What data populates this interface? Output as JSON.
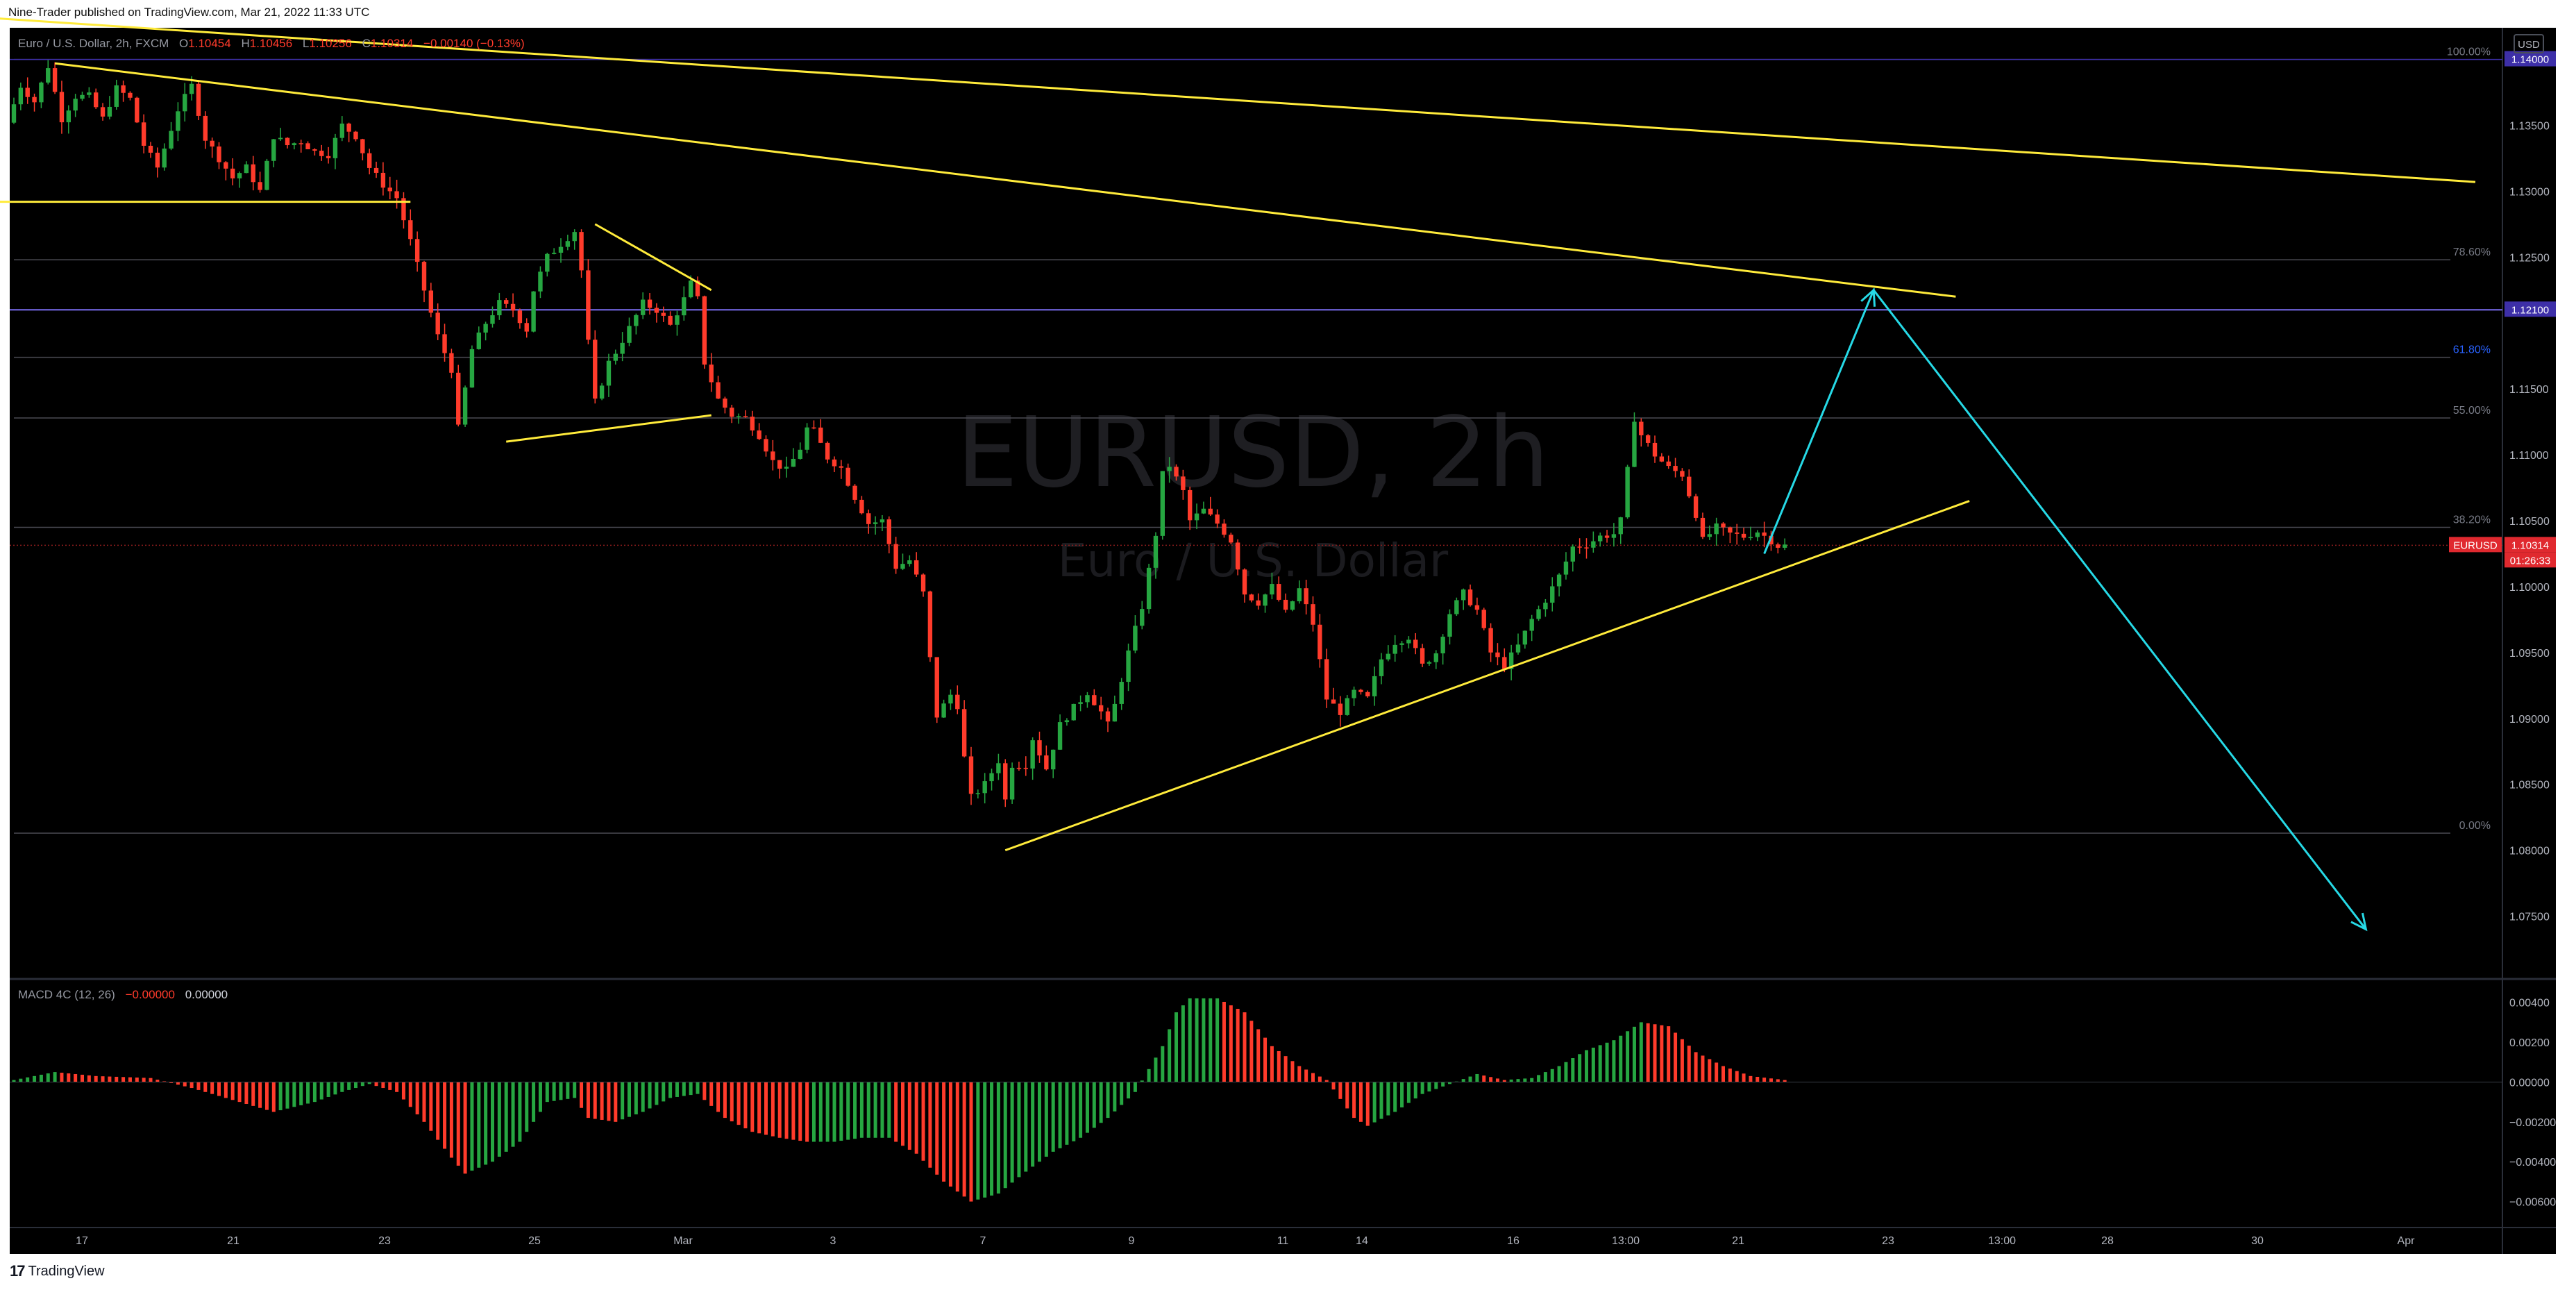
{
  "publisher": "Nine-Trader published on TradingView.com, Mar 21, 2022 11:33 UTC",
  "brand": {
    "logo": "17",
    "name": "TradingView"
  },
  "currency": "USD",
  "watermark": {
    "symbol": "EURUSD, 2h",
    "description": "Euro / U.S. Dollar"
  },
  "colors": {
    "background": "#000000",
    "up": "#26a641",
    "down": "#ff3b2b",
    "trendline": "#ffeb3b",
    "projection": "#26d9e6",
    "fib_line": "#4a4a52",
    "label_price": "#e0292f",
    "label_level": "#3d2fa8"
  },
  "header": {
    "title": "Euro / U.S. Dollar, 2h, FXCM",
    "o_label": "O",
    "o": "1.10454",
    "h_label": "H",
    "h": "1.10456",
    "l_label": "L",
    "l": "1.10256",
    "c_label": "C",
    "c": "1.10314",
    "change": "−0.00140 (−0.13%)"
  },
  "macd": {
    "title": "MACD 4C (12, 26)",
    "val1": "−0.00000",
    "val2": "0.00000"
  },
  "price_axis": {
    "ticks": [
      "1.13500",
      "1.13000",
      "1.12500",
      "1.11500",
      "1.11000",
      "1.10500",
      "1.10000",
      "1.09500",
      "1.09000",
      "1.08500",
      "1.08000",
      "1.07500"
    ],
    "tick_values": [
      1.135,
      1.13,
      1.125,
      1.115,
      1.11,
      1.105,
      1.1,
      1.095,
      1.09,
      1.085,
      1.08,
      1.075
    ]
  },
  "macd_axis": {
    "ticks": [
      "0.00400",
      "0.00200",
      "0.00000",
      "−0.00200",
      "−0.00400",
      "−0.00600"
    ],
    "tick_values": [
      0.004,
      0.002,
      0.0,
      -0.002,
      -0.004,
      -0.006
    ]
  },
  "fib_levels": [
    {
      "label": "100.00%",
      "value": 1.14
    },
    {
      "label": "78.60%",
      "value": 1.1248
    },
    {
      "label": "61.80%",
      "value": 1.1174
    },
    {
      "label": "55.00%",
      "value": 1.1128
    },
    {
      "label": "38.20%",
      "value": 1.1045
    },
    {
      "label": "0.00%",
      "value": 1.0813
    }
  ],
  "price_labels": [
    {
      "text": "1.14000",
      "value": 1.14,
      "kind": "level"
    },
    {
      "text": "1.12100",
      "value": 1.121,
      "kind": "level"
    },
    {
      "text": "EURUSD",
      "value": 1.10314,
      "kind": "symbol"
    },
    {
      "text": "1.10314",
      "value": 1.10314,
      "kind": "price"
    },
    {
      "text": "01:26:33",
      "value": 1.10314,
      "kind": "timer"
    }
  ],
  "time_axis": [
    "17",
    "21",
    "23",
    "25",
    "Mar",
    "3",
    "7",
    "9",
    "11",
    "14",
    "16",
    "13:00",
    "21",
    "23",
    "13:00",
    "28",
    "30",
    "Apr"
  ],
  "chart_data": {
    "type": "candlestick",
    "symbol": "EURUSD",
    "interval": "2h",
    "ylim": [
      1.0705,
      1.1424
    ],
    "price_path": [
      [
        0,
        1.1352
      ],
      [
        2,
        1.138
      ],
      [
        4,
        1.1368
      ],
      [
        6,
        1.1395
      ],
      [
        8,
        1.1355
      ],
      [
        10,
        1.1372
      ],
      [
        12,
        1.1372
      ],
      [
        14,
        1.1355
      ],
      [
        16,
        1.1378
      ],
      [
        18,
        1.137
      ],
      [
        20,
        1.1335
      ],
      [
        22,
        1.1318
      ],
      [
        25,
        1.1362
      ],
      [
        27,
        1.138
      ],
      [
        29,
        1.134
      ],
      [
        31,
        1.1325
      ],
      [
        33,
        1.131
      ],
      [
        35,
        1.1318
      ],
      [
        37,
        1.13
      ],
      [
        39,
        1.1342
      ],
      [
        41,
        1.1335
      ],
      [
        43,
        1.1338
      ],
      [
        45,
        1.133
      ],
      [
        47,
        1.1328
      ],
      [
        49,
        1.135
      ],
      [
        51,
        1.1342
      ],
      [
        53,
        1.1318
      ],
      [
        55,
        1.1305
      ],
      [
        57,
        1.1295
      ],
      [
        59,
        1.1262
      ],
      [
        61,
        1.1225
      ],
      [
        63,
        1.119
      ],
      [
        65,
        1.1165
      ],
      [
        66,
        1.112
      ],
      [
        67,
        1.115
      ],
      [
        68,
        1.118
      ],
      [
        70,
        1.12
      ],
      [
        72,
        1.1215
      ],
      [
        74,
        1.121
      ],
      [
        76,
        1.1195
      ],
      [
        77,
        1.1225
      ],
      [
        79,
        1.125
      ],
      [
        81,
        1.126
      ],
      [
        83,
        1.127
      ],
      [
        84,
        1.124
      ],
      [
        85,
        1.1185
      ],
      [
        86,
        1.114
      ],
      [
        87,
        1.1155
      ],
      [
        88,
        1.117
      ],
      [
        89,
        1.1178
      ],
      [
        91,
        1.1196
      ],
      [
        93,
        1.1215
      ],
      [
        95,
        1.121
      ],
      [
        97,
        1.1198
      ],
      [
        99,
        1.1218
      ],
      [
        100,
        1.123
      ],
      [
        101,
        1.1218
      ],
      [
        102,
        1.117
      ],
      [
        104,
        1.1142
      ],
      [
        106,
        1.113
      ],
      [
        108,
        1.1128
      ],
      [
        110,
        1.1115
      ],
      [
        112,
        1.1095
      ],
      [
        114,
        1.1088
      ],
      [
        116,
        1.1105
      ],
      [
        117,
        1.112
      ],
      [
        118,
        1.1118
      ],
      [
        120,
        1.1098
      ],
      [
        122,
        1.109
      ],
      [
        124,
        1.1068
      ],
      [
        126,
        1.1048
      ],
      [
        128,
        1.105
      ],
      [
        130,
        1.1015
      ],
      [
        132,
        1.102
      ],
      [
        134,
        1.0995
      ],
      [
        135,
        1.0945
      ],
      [
        136,
        1.0902
      ],
      [
        138,
        1.0918
      ],
      [
        139,
        1.091
      ],
      [
        140,
        1.087
      ],
      [
        141,
        1.084
      ],
      [
        143,
        1.085
      ],
      [
        145,
        1.0868
      ],
      [
        146,
        1.0838
      ],
      [
        147,
        1.0865
      ],
      [
        149,
        1.0865
      ],
      [
        150,
        1.0885
      ],
      [
        152,
        1.0862
      ],
      [
        154,
        1.0895
      ],
      [
        156,
        1.0908
      ],
      [
        158,
        1.092
      ],
      [
        160,
        1.0905
      ],
      [
        161,
        1.0895
      ],
      [
        162,
        1.091
      ],
      [
        164,
        1.095
      ],
      [
        166,
        1.0985
      ],
      [
        168,
        1.104
      ],
      [
        169,
        1.1085
      ],
      [
        170,
        1.1092
      ],
      [
        172,
        1.1072
      ],
      [
        173,
        1.105
      ],
      [
        175,
        1.1058
      ],
      [
        177,
        1.1048
      ],
      [
        179,
        1.1035
      ],
      [
        181,
        1.0995
      ],
      [
        183,
        1.0988
      ],
      [
        185,
        1.1
      ],
      [
        187,
        1.098
      ],
      [
        189,
        1.0998
      ],
      [
        191,
        1.0972
      ],
      [
        193,
        1.0915
      ],
      [
        195,
        1.0905
      ],
      [
        197,
        1.092
      ],
      [
        199,
        1.0915
      ],
      [
        201,
        1.0945
      ],
      [
        203,
        1.0958
      ],
      [
        205,
        1.0962
      ],
      [
        207,
        1.094
      ],
      [
        209,
        1.095
      ],
      [
        211,
        1.098
      ],
      [
        213,
        1.0995
      ],
      [
        215,
        1.0982
      ],
      [
        217,
        1.095
      ],
      [
        219,
        1.094
      ],
      [
        221,
        1.0955
      ],
      [
        223,
        1.0975
      ],
      [
        225,
        1.099
      ],
      [
        227,
        1.1008
      ],
      [
        229,
        1.103
      ],
      [
        231,
        1.1032
      ],
      [
        233,
        1.1038
      ],
      [
        235,
        1.104
      ],
      [
        236,
        1.105
      ],
      [
        237,
        1.1088
      ],
      [
        238,
        1.1128
      ],
      [
        239,
        1.1115
      ],
      [
        241,
        1.11
      ],
      [
        243,
        1.109
      ],
      [
        245,
        1.1085
      ],
      [
        247,
        1.1055
      ],
      [
        248,
        1.1035
      ],
      [
        250,
        1.1045
      ],
      [
        252,
        1.104
      ],
      [
        254,
        1.1038
      ],
      [
        256,
        1.1042
      ],
      [
        258,
        1.1035
      ],
      [
        259,
        1.1031
      ]
    ],
    "macd_path": [
      [
        0,
        0.0001
      ],
      [
        6,
        0.0005
      ],
      [
        12,
        0.0003
      ],
      [
        20,
        0.0002
      ],
      [
        26,
        -0.0003
      ],
      [
        32,
        -0.0009
      ],
      [
        38,
        -0.0015
      ],
      [
        44,
        -0.001
      ],
      [
        48,
        -0.0005
      ],
      [
        52,
        -0.0001
      ],
      [
        56,
        -0.0005
      ],
      [
        60,
        -0.002
      ],
      [
        64,
        -0.0038
      ],
      [
        66,
        -0.0046
      ],
      [
        70,
        -0.004
      ],
      [
        74,
        -0.003
      ],
      [
        78,
        -0.001
      ],
      [
        82,
        -0.0008
      ],
      [
        84,
        -0.0018
      ],
      [
        88,
        -0.002
      ],
      [
        92,
        -0.0015
      ],
      [
        96,
        -0.0008
      ],
      [
        100,
        -0.0006
      ],
      [
        104,
        -0.0018
      ],
      [
        108,
        -0.0025
      ],
      [
        112,
        -0.0028
      ],
      [
        116,
        -0.003
      ],
      [
        120,
        -0.003
      ],
      [
        124,
        -0.0028
      ],
      [
        128,
        -0.0028
      ],
      [
        132,
        -0.0036
      ],
      [
        136,
        -0.005
      ],
      [
        140,
        -0.006
      ],
      [
        144,
        -0.0056
      ],
      [
        148,
        -0.0045
      ],
      [
        152,
        -0.0035
      ],
      [
        156,
        -0.0028
      ],
      [
        160,
        -0.0018
      ],
      [
        164,
        -0.0005
      ],
      [
        168,
        0.0018
      ],
      [
        170,
        0.0035
      ],
      [
        172,
        0.0042
      ],
      [
        176,
        0.0042
      ],
      [
        180,
        0.0035
      ],
      [
        184,
        0.0018
      ],
      [
        188,
        0.0008
      ],
      [
        192,
        0.0001
      ],
      [
        196,
        -0.0018
      ],
      [
        198,
        -0.0022
      ],
      [
        202,
        -0.0015
      ],
      [
        206,
        -0.0006
      ],
      [
        210,
        -0.0001
      ],
      [
        214,
        0.0004
      ],
      [
        218,
        0.0001
      ],
      [
        222,
        0.0002
      ],
      [
        226,
        0.0008
      ],
      [
        230,
        0.0016
      ],
      [
        234,
        0.0021
      ],
      [
        238,
        0.003
      ],
      [
        242,
        0.0028
      ],
      [
        246,
        0.0015
      ],
      [
        250,
        0.0008
      ],
      [
        254,
        0.0003
      ],
      [
        259,
        0.0001
      ]
    ],
    "candle_count": 260,
    "drawings": {
      "trendlines": [
        {
          "name": "upper-resistance",
          "from": [
            -5,
            1.1432
          ],
          "to": [
            360,
            1.1307
          ]
        },
        {
          "name": "lower-resistance",
          "from": [
            6,
            1.1397
          ],
          "to": [
            284,
            1.122
          ]
        },
        {
          "name": "support-horizontal",
          "from": [
            -5,
            1.1292
          ],
          "to": [
            58,
            1.1292
          ]
        },
        {
          "name": "wedge-top",
          "from": [
            85,
            1.1275
          ],
          "to": [
            102,
            1.1225
          ]
        },
        {
          "name": "wedge-bottom",
          "from": [
            72,
            1.111
          ],
          "to": [
            102,
            1.113
          ]
        },
        {
          "name": "ascending-support",
          "from": [
            145,
            1.08
          ],
          "to": [
            286,
            1.1065
          ]
        }
      ],
      "projection": [
        [
          256,
          1.1025
        ],
        [
          272,
          1.1225
        ],
        [
          344,
          1.074
        ]
      ]
    }
  }
}
